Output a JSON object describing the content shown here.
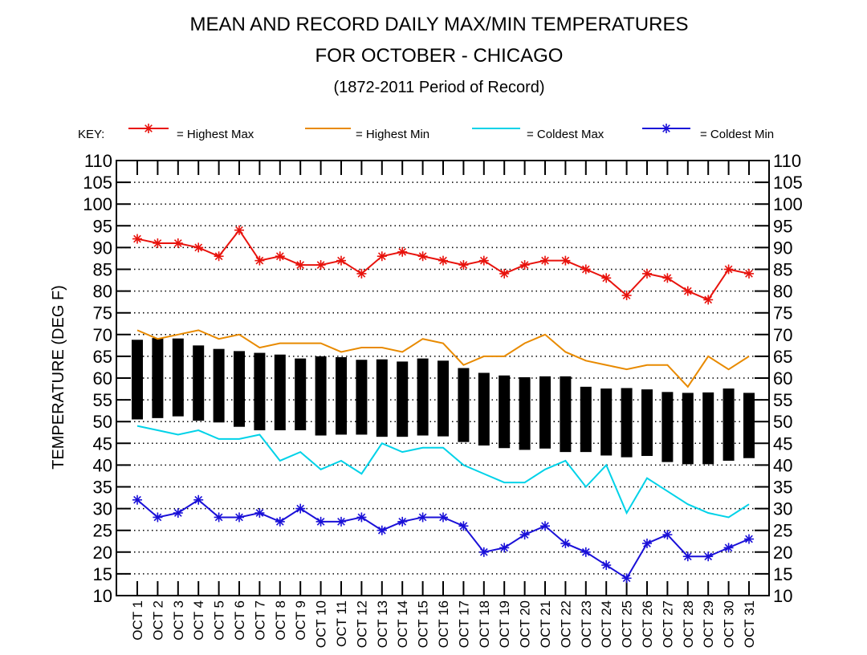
{
  "chart_data": {
    "type": "line",
    "title": "MEAN AND RECORD DAILY MAX/MIN TEMPERATURES",
    "subtitle": "FOR OCTOBER - CHICAGO",
    "period": "(1872-2011 Period of Record)",
    "ylabel": "TEMPERATURE (DEG F)",
    "xlabel": "",
    "ylim": [
      10,
      110
    ],
    "yticks": [
      10,
      15,
      20,
      25,
      30,
      35,
      40,
      45,
      50,
      55,
      60,
      65,
      70,
      75,
      80,
      85,
      90,
      95,
      100,
      105,
      110
    ],
    "grid": true,
    "legend_position": "top",
    "legend_key_label": "KEY:",
    "categories": [
      "OCT 1",
      "OCT 2",
      "OCT 3",
      "OCT 4",
      "OCT 5",
      "OCT 6",
      "OCT 7",
      "OCT 8",
      "OCT 9",
      "OCT 10",
      "OCT 11",
      "OCT 12",
      "OCT 13",
      "OCT 14",
      "OCT 15",
      "OCT 16",
      "OCT 17",
      "OCT 18",
      "OCT 19",
      "OCT 20",
      "OCT 21",
      "OCT 22",
      "OCT 23",
      "OCT 24",
      "OCT 25",
      "OCT 26",
      "OCT 27",
      "OCT 28",
      "OCT 29",
      "OCT 30",
      "OCT 31"
    ],
    "series": [
      {
        "name": "= Highest Max",
        "color": "#e8120c",
        "marker": "star",
        "values": [
          92,
          91,
          91,
          90,
          88,
          94,
          87,
          88,
          86,
          86,
          87,
          84,
          88,
          89,
          88,
          87,
          86,
          87,
          84,
          86,
          87,
          87,
          85,
          83,
          79,
          84,
          83,
          80,
          78,
          85,
          84
        ]
      },
      {
        "name": "= Highest Min",
        "color": "#e88a00",
        "marker": "none",
        "values": [
          71,
          69,
          70,
          71,
          69,
          70,
          67,
          68,
          68,
          68,
          66,
          67,
          67,
          66,
          69,
          68,
          63,
          65,
          65,
          68,
          70,
          66,
          64,
          63,
          62,
          63,
          63,
          58,
          65,
          62,
          65
        ]
      },
      {
        "name": "= Coldest Max",
        "color": "#00d2e8",
        "marker": "none",
        "values": [
          49,
          48,
          47,
          48,
          46,
          46,
          47,
          41,
          43,
          39,
          41,
          38,
          45,
          43,
          44,
          44,
          40,
          38,
          36,
          36,
          39,
          41,
          35,
          40,
          29,
          37,
          34,
          31,
          29,
          28,
          31
        ]
      },
      {
        "name": "= Coldest Min",
        "color": "#1a10d8",
        "marker": "star",
        "values": [
          32,
          28,
          29,
          32,
          28,
          28,
          29,
          27,
          30,
          27,
          27,
          28,
          25,
          27,
          28,
          28,
          26,
          20,
          21,
          24,
          26,
          22,
          20,
          17,
          14,
          22,
          24,
          19,
          19,
          21,
          23
        ]
      }
    ],
    "mean_bars": {
      "name": "Mean Max/Min",
      "color": "#000000",
      "mean_max": [
        68.8,
        69.2,
        69.1,
        67.5,
        66.7,
        66.2,
        65.8,
        65.4,
        64.5,
        65.0,
        64.8,
        64.2,
        64.3,
        63.8,
        64.5,
        64.0,
        62.3,
        61.2,
        60.6,
        60.2,
        60.4,
        60.4,
        58.0,
        57.6,
        57.7,
        57.4,
        56.8,
        56.6,
        56.7,
        57.6,
        56.6
      ],
      "mean_min": [
        50.5,
        50.8,
        51.2,
        50.2,
        49.8,
        48.8,
        48.0,
        48.0,
        48.0,
        46.8,
        47.0,
        47.0,
        46.5,
        46.5,
        46.8,
        46.6,
        45.3,
        44.5,
        43.9,
        43.5,
        43.8,
        43.0,
        43.0,
        42.2,
        41.8,
        42.1,
        40.7,
        40.2,
        40.2,
        41.0,
        41.6
      ]
    }
  }
}
